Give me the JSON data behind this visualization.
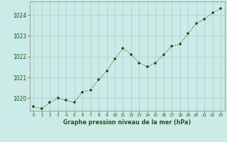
{
  "x": [
    0,
    1,
    2,
    3,
    4,
    5,
    6,
    7,
    8,
    9,
    10,
    11,
    12,
    13,
    14,
    15,
    16,
    17,
    18,
    19,
    20,
    21,
    22,
    23
  ],
  "y": [
    1019.6,
    1019.5,
    1019.8,
    1020.0,
    1019.9,
    1019.8,
    1020.3,
    1020.4,
    1020.9,
    1021.3,
    1021.9,
    1022.4,
    1022.1,
    1021.7,
    1021.5,
    1021.7,
    1022.1,
    1022.5,
    1022.6,
    1023.1,
    1023.6,
    1023.8,
    1024.1,
    1024.3
  ],
  "line_color": "#1a5c1a",
  "marker_color": "#1a5c1a",
  "bg_color": "#cceae7",
  "grid_color": "#aad4d0",
  "xlabel": "Graphe pression niveau de la mer (hPa)",
  "xlabel_color": "#1a5c1a",
  "tick_color": "#1a5c1a",
  "axis_color": "#888888",
  "ylim_min": 1019.4,
  "ylim_max": 1024.65,
  "yticks": [
    1020,
    1021,
    1022,
    1023,
    1024
  ],
  "xlim_min": -0.5,
  "xlim_max": 23.5
}
